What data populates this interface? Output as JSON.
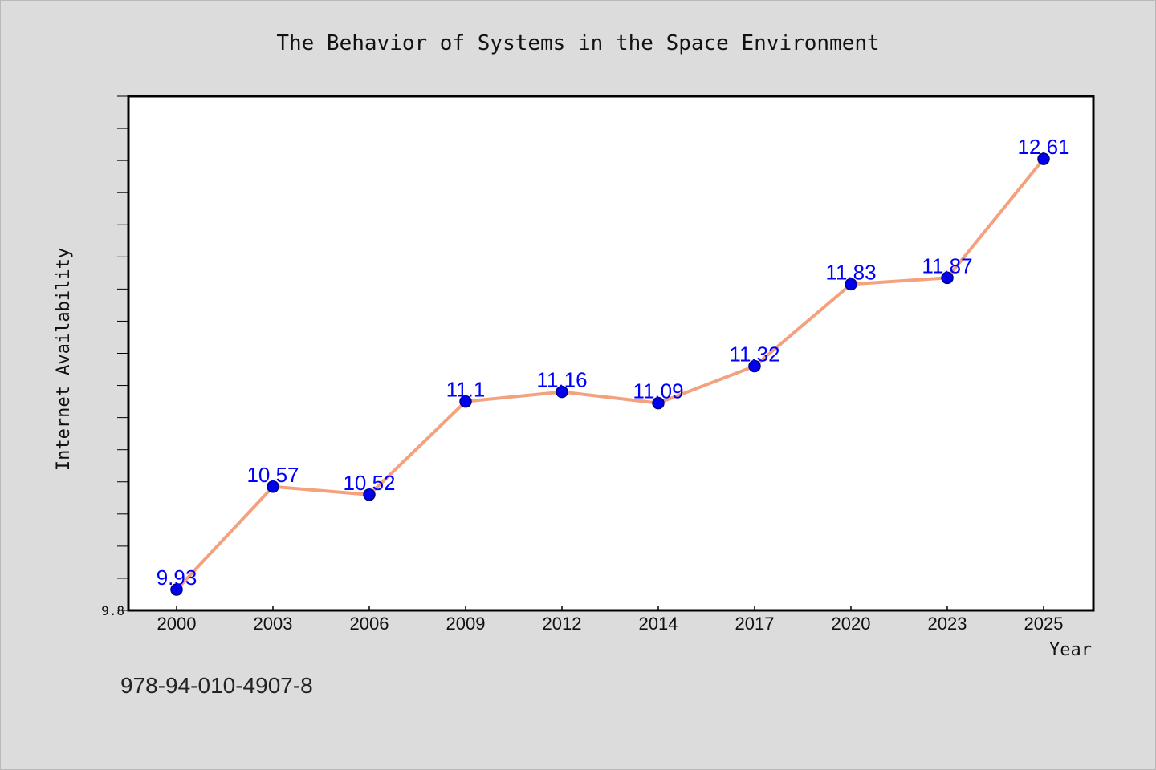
{
  "chart_data": {
    "type": "line",
    "title": "The Behavior of Systems in the Space Environment",
    "xlabel": "Year",
    "ylabel": "Internet Availability",
    "categories": [
      "2000",
      "2003",
      "2006",
      "2009",
      "2012",
      "2014",
      "2017",
      "2020",
      "2023",
      "2025"
    ],
    "series": [
      {
        "values": [
          9.93,
          10.57,
          10.52,
          11.1,
          11.16,
          11.09,
          11.32,
          11.83,
          11.87,
          12.61
        ]
      }
    ],
    "data_labels": [
      "9.93",
      "10.57",
      "10.52",
      "11.1",
      "11.16",
      "11.09",
      "11.32",
      "11.83",
      "11.87",
      "12.61"
    ],
    "ylim": [
      9.8,
      13.0
    ],
    "ytick_labels": [
      "9.8"
    ],
    "grid": false,
    "legend": "none",
    "colors": {
      "line": "#f4a27e",
      "marker": "#0000ee",
      "marker_edge": "#000080",
      "label": "#0000ff",
      "background": "#dcdcdc",
      "plot_background": "#ffffff"
    }
  },
  "footer": {
    "isbn": "978-94-010-4907-8"
  }
}
